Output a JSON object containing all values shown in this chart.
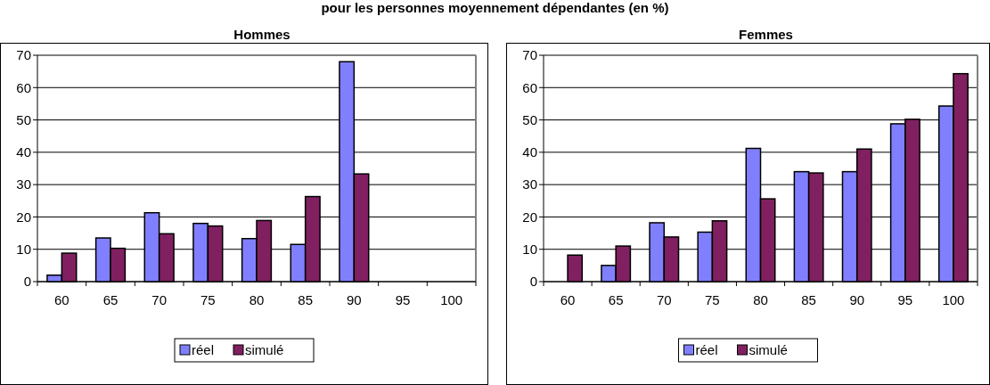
{
  "chart_data": [
    {
      "type": "bar",
      "title": "Hommes",
      "annotations": [
        "pour les personnes moyennement dépendantes (en %)"
      ],
      "categories": [
        "60",
        "65",
        "70",
        "75",
        "80",
        "85",
        "90",
        "95",
        "100"
      ],
      "series": [
        {
          "name": "réel",
          "color": "#8080ff",
          "values": [
            2,
            13.5,
            21.3,
            18,
            13.3,
            11.5,
            68,
            null,
            null
          ]
        },
        {
          "name": "simulé",
          "color": "#802060",
          "values": [
            8.8,
            10.3,
            14.8,
            17.2,
            18.9,
            26.3,
            33.3,
            null,
            null
          ]
        }
      ],
      "ylim": [
        0,
        70
      ],
      "yticks": [
        0,
        10,
        20,
        30,
        40,
        50,
        60,
        70
      ],
      "grid": "y",
      "legend": "bottom"
    },
    {
      "type": "bar",
      "title": "Femmes",
      "categories": [
        "60",
        "65",
        "70",
        "75",
        "80",
        "85",
        "90",
        "95",
        "100"
      ],
      "series": [
        {
          "name": "réel",
          "color": "#8080ff",
          "values": [
            0,
            5,
            18.2,
            15.3,
            41.2,
            34,
            34,
            48.8,
            54.3
          ]
        },
        {
          "name": "simulé",
          "color": "#802060",
          "values": [
            8.2,
            11,
            13.8,
            18.8,
            25.6,
            33.6,
            41,
            50.2,
            64.3
          ]
        }
      ],
      "ylim": [
        0,
        70
      ],
      "yticks": [
        0,
        10,
        20,
        30,
        40,
        50,
        60,
        70
      ],
      "grid": "y",
      "legend": "bottom"
    }
  ]
}
